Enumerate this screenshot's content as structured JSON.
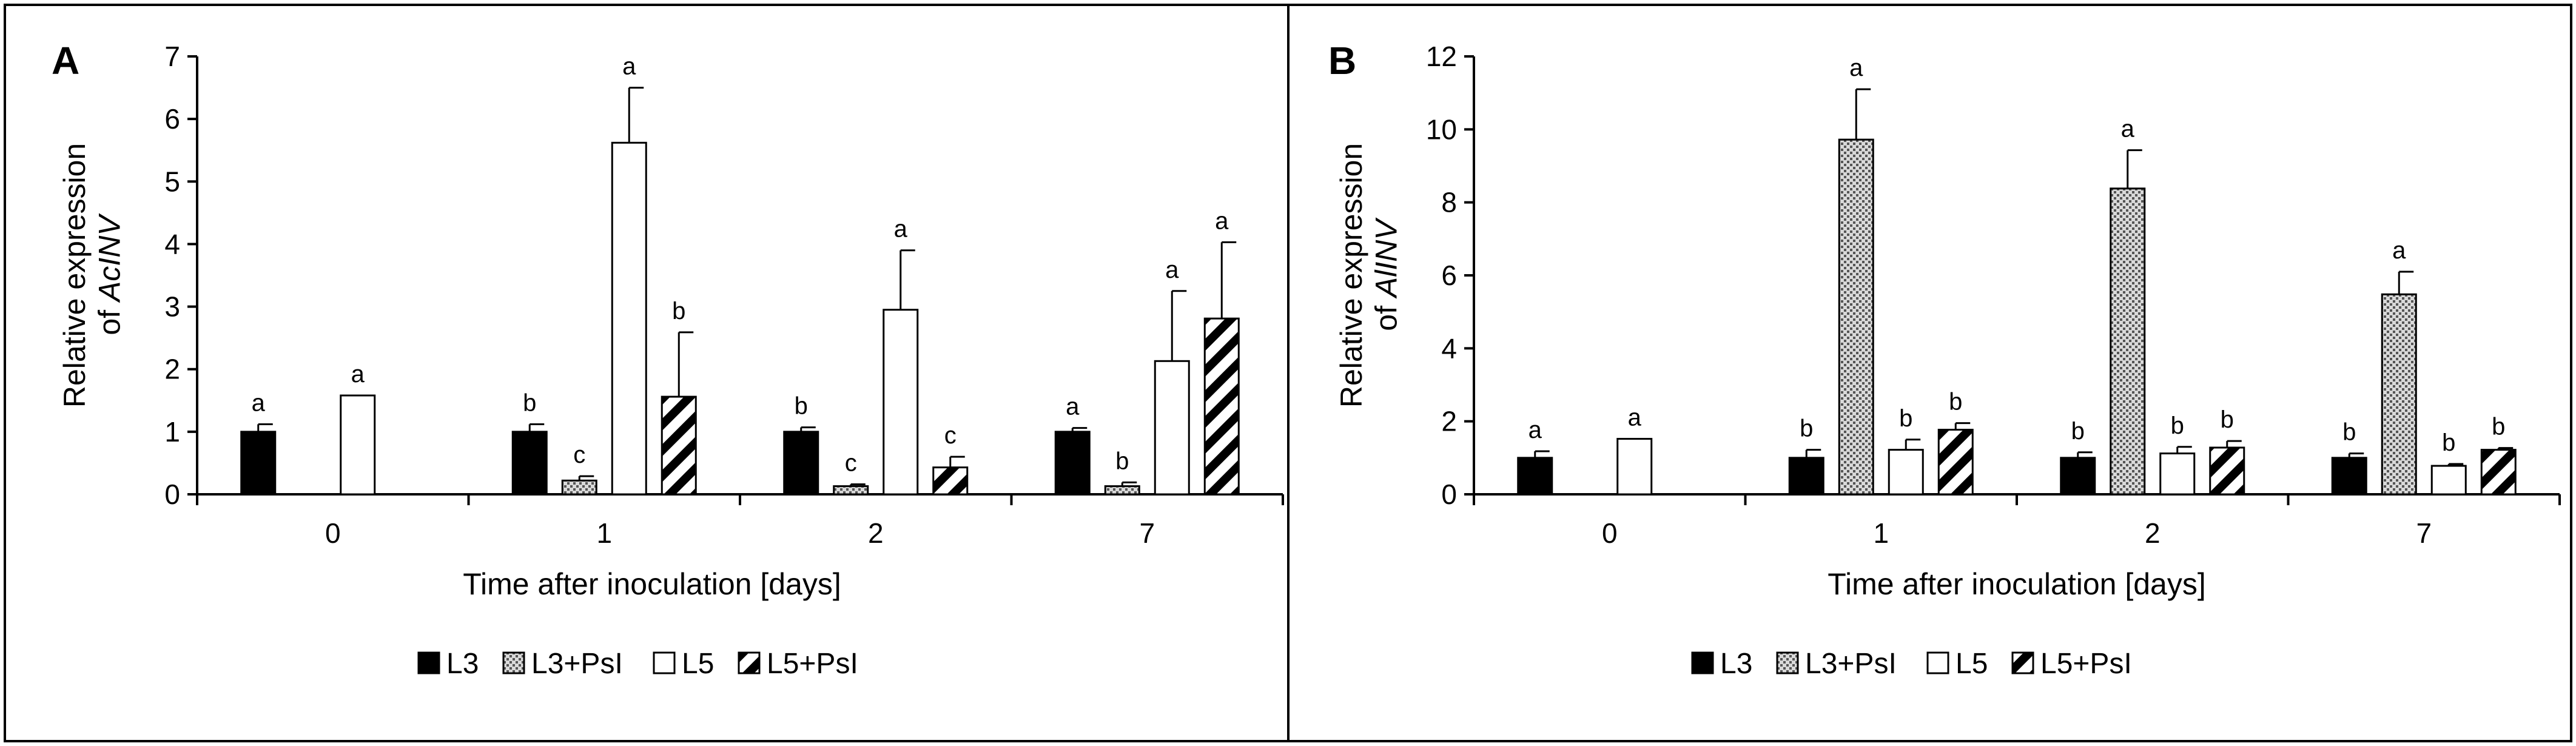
{
  "chart_data": [
    {
      "type": "bar",
      "panel_label": "A",
      "ylabel_prefix": "Relative expression",
      "ylabel_of": "of ",
      "ylabel_gene": "AcINV",
      "xlabel": "Time after inoculation [days]",
      "categories": [
        "0",
        "1",
        "2",
        "7"
      ],
      "ylim": [
        0,
        7
      ],
      "yticks": [
        0,
        1,
        2,
        3,
        4,
        5,
        6,
        7
      ],
      "series": [
        {
          "name": "L3",
          "values": [
            1.0,
            1.0,
            1.0,
            1.0
          ],
          "errors": [
            0.12,
            0.12,
            0.07,
            0.06
          ],
          "letters": [
            "a",
            "b",
            "b",
            "a"
          ]
        },
        {
          "name": "L3+PsI",
          "values": [
            null,
            0.22,
            0.13,
            0.13
          ],
          "errors": [
            null,
            0.07,
            0.03,
            0.06
          ],
          "letters": [
            "",
            "c",
            "c",
            "b"
          ]
        },
        {
          "name": "L5",
          "values": [
            1.58,
            5.62,
            2.95,
            2.13
          ],
          "errors": [
            0,
            0.88,
            0.95,
            1.12
          ],
          "letters": [
            "a",
            "a",
            "a",
            "a"
          ]
        },
        {
          "name": "L5+PsI",
          "values": [
            null,
            1.56,
            0.43,
            2.81
          ],
          "errors": [
            null,
            1.03,
            0.17,
            1.22
          ],
          "letters": [
            "",
            "b",
            "c",
            "a"
          ]
        }
      ],
      "legend_position": "bottom-center"
    },
    {
      "type": "bar",
      "panel_label": "B",
      "ylabel_prefix": "Relative expression",
      "ylabel_of": "of ",
      "ylabel_gene": "AlINV",
      "xlabel": "Time after inoculation [days]",
      "categories": [
        "0",
        "1",
        "2",
        "7"
      ],
      "ylim": [
        0,
        12
      ],
      "yticks": [
        0,
        2,
        4,
        6,
        8,
        10,
        12
      ],
      "series": [
        {
          "name": "L3",
          "values": [
            1.0,
            1.0,
            1.0,
            1.0
          ],
          "errors": [
            0.18,
            0.22,
            0.15,
            0.12
          ],
          "letters": [
            "a",
            "b",
            "b",
            "b"
          ]
        },
        {
          "name": "L3+PsI",
          "values": [
            null,
            9.72,
            8.38,
            5.48
          ],
          "errors": [
            null,
            1.38,
            1.05,
            0.62
          ],
          "letters": [
            "",
            "a",
            "a",
            "a"
          ]
        },
        {
          "name": "L5",
          "values": [
            1.52,
            1.22,
            1.12,
            0.78
          ],
          "errors": [
            0,
            0.28,
            0.18,
            0.05
          ],
          "letters": [
            "a",
            "b",
            "b",
            "b"
          ]
        },
        {
          "name": "L5+PsI",
          "values": [
            null,
            1.77,
            1.28,
            1.22
          ],
          "errors": [
            null,
            0.18,
            0.18,
            0.05
          ],
          "letters": [
            "",
            "b",
            "b",
            "b"
          ]
        }
      ],
      "legend_position": "bottom-center"
    }
  ]
}
